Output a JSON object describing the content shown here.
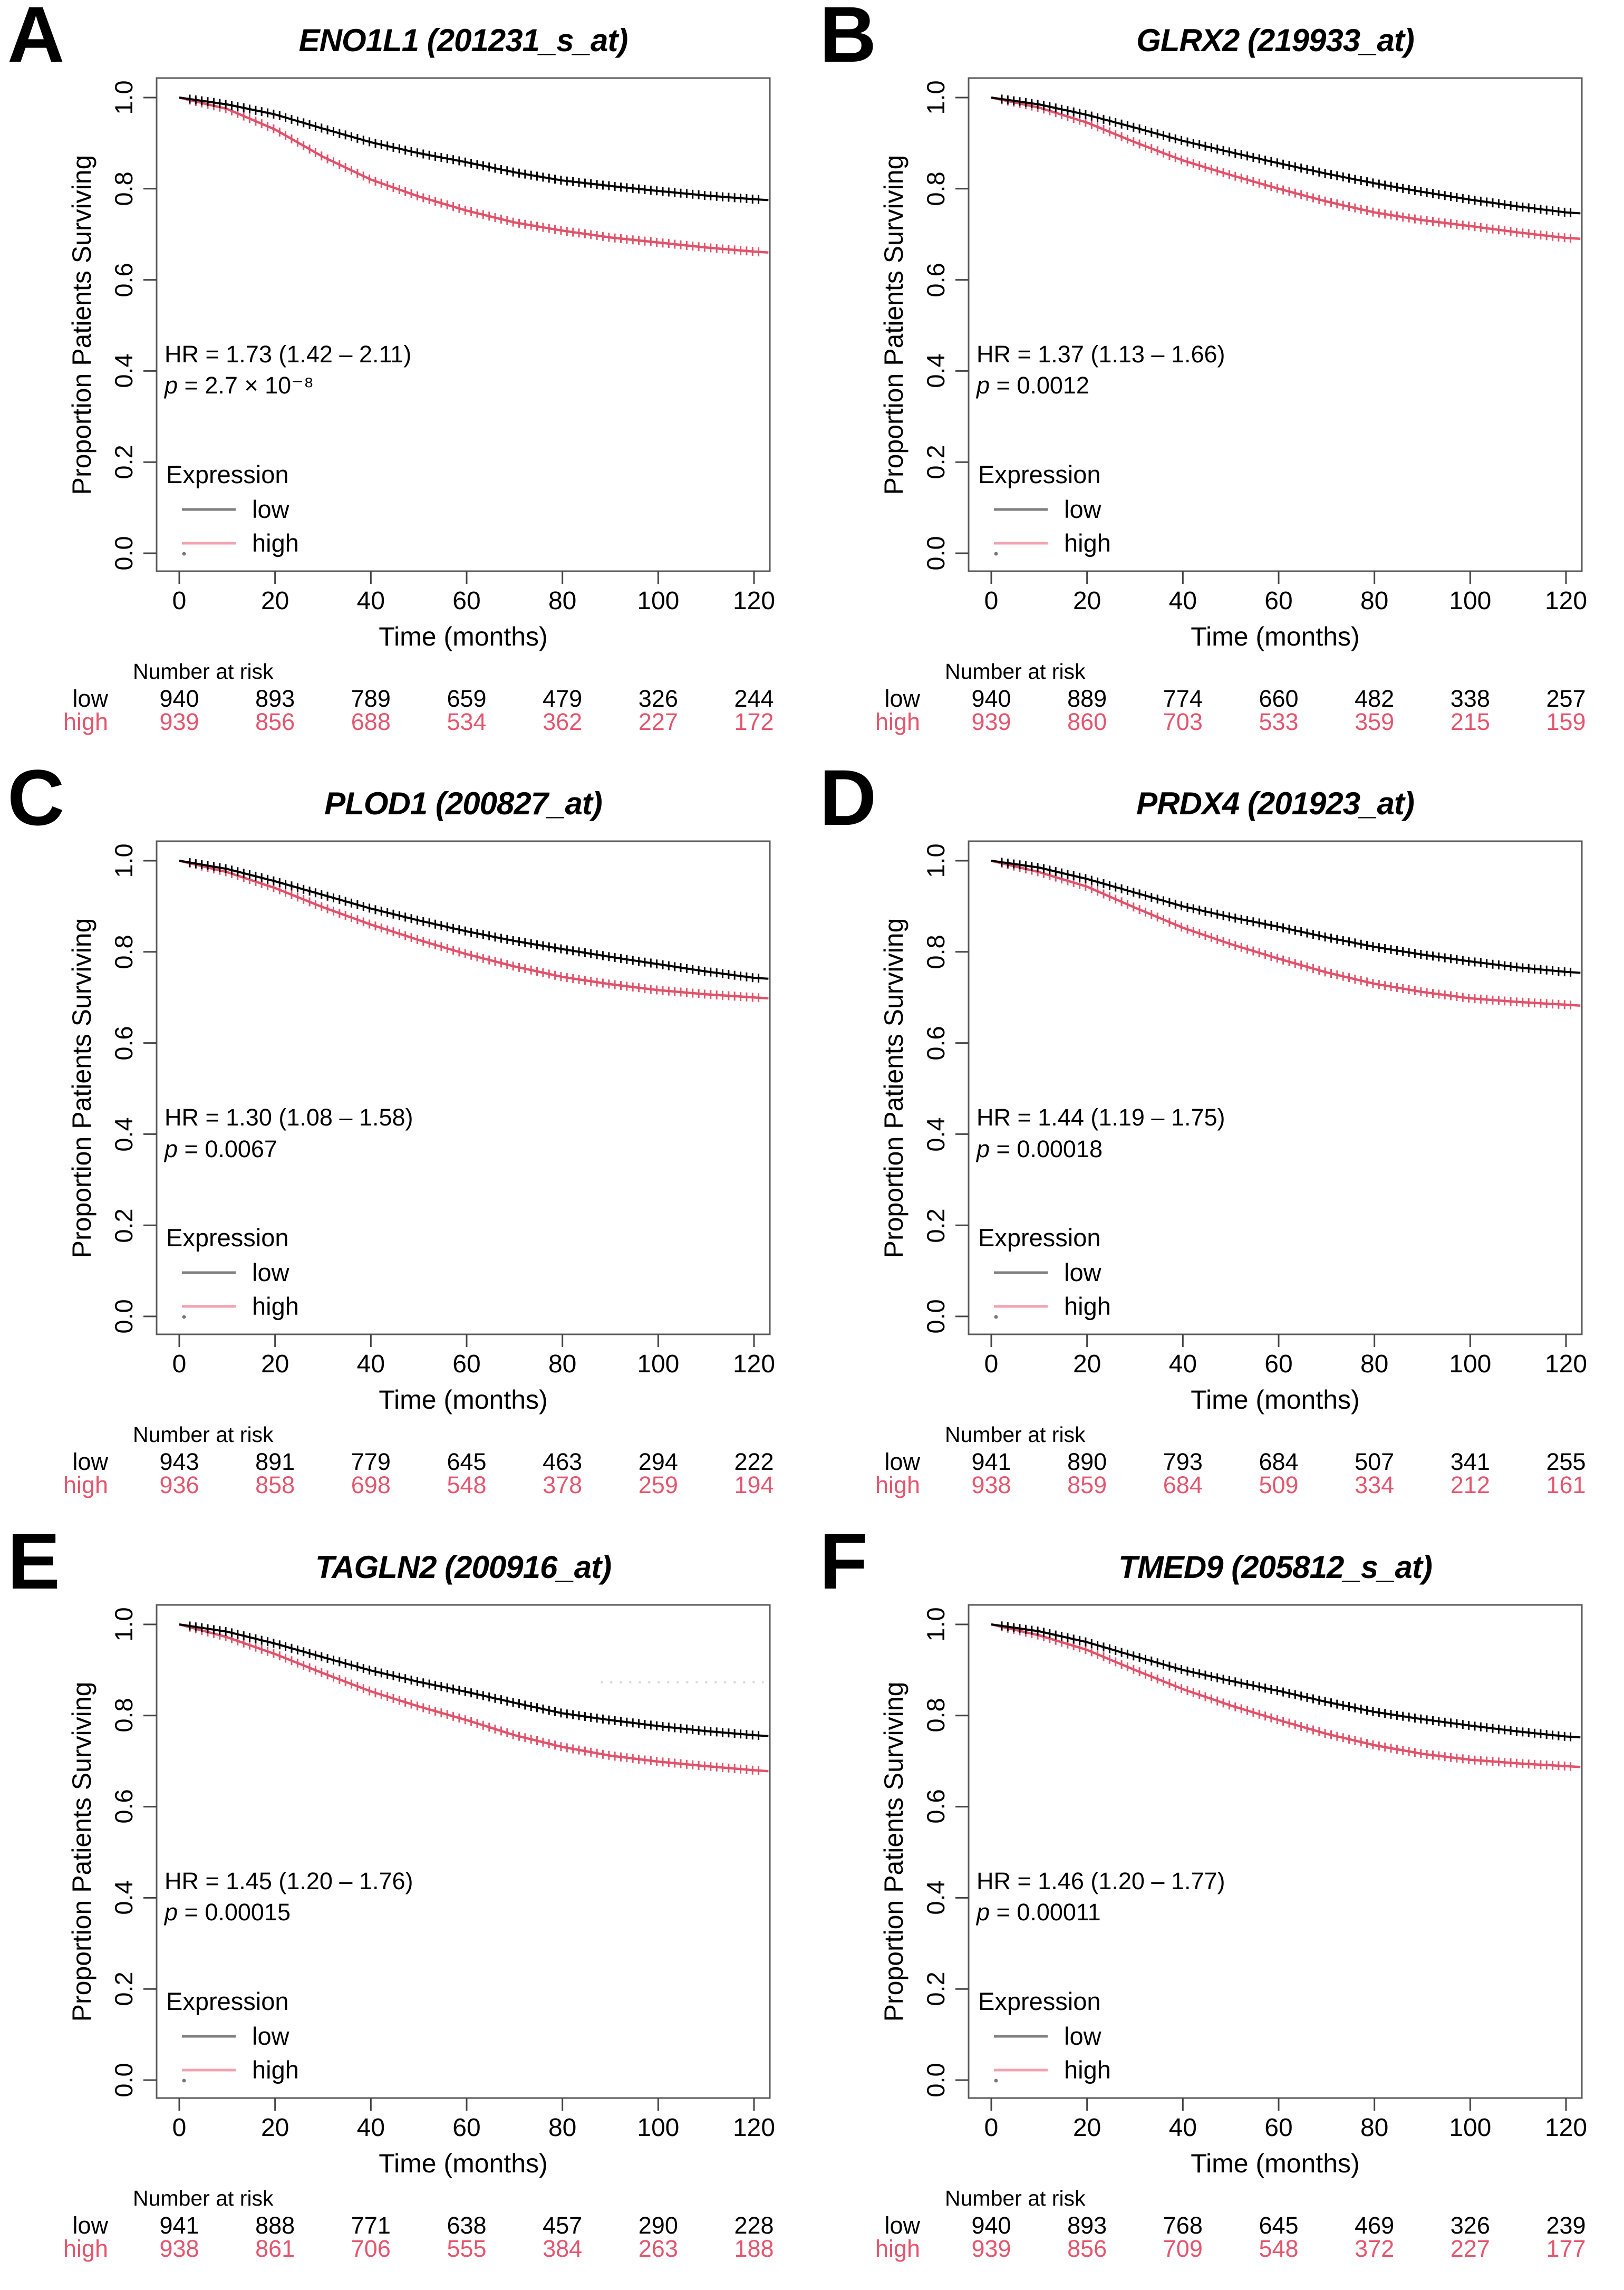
{
  "figure": {
    "axis": {
      "x_label": "Time (months)",
      "y_label": "Proportion Patients Surviving",
      "x_ticks": [
        "0",
        "20",
        "40",
        "60",
        "80",
        "100",
        "120"
      ],
      "y_ticks": [
        "1.0",
        "0.8",
        "0.6",
        "0.4",
        "0.2",
        "0.0"
      ]
    },
    "legend": {
      "title": "Expression",
      "items": [
        "low",
        "high"
      ]
    },
    "risk_title": "Number at risk",
    "risk_row_labels": [
      "low",
      "high"
    ],
    "colors": {
      "low_curve": "#000000",
      "high_curve": "#DF536B",
      "high_text": "#E4566E",
      "legend_low_line": "#808080",
      "legend_high_line": "#F2A2B0",
      "axis_box": "#5a5a5a",
      "tick": "#444444",
      "artifact_line": "#d8d8d8"
    }
  },
  "chart_data": [
    {
      "type": "line",
      "subtype": "kaplan-meier",
      "label": "A",
      "title": "ENO1L1 (201231_s_at)",
      "hr_text": "HR = 1.73 (1.42 – 2.11)",
      "p": {
        "label": "p",
        "rest": " = 2.7 × 10⁻⁸"
      },
      "xlabel": "Time (months)",
      "ylabel": "Proportion Patients Surviving",
      "xlim": [
        0,
        120
      ],
      "ylim": [
        0.0,
        1.0
      ],
      "series": [
        {
          "name": "low",
          "color": "#000000",
          "t": [
            0,
            10,
            20,
            30,
            40,
            50,
            60,
            70,
            80,
            90,
            100,
            110,
            120,
            123
          ],
          "s": [
            1.0,
            0.985,
            0.963,
            0.932,
            0.902,
            0.878,
            0.858,
            0.836,
            0.818,
            0.806,
            0.795,
            0.785,
            0.777,
            0.775
          ]
        },
        {
          "name": "high",
          "color": "#DF536B",
          "t": [
            0,
            10,
            20,
            30,
            40,
            50,
            60,
            70,
            80,
            90,
            100,
            110,
            120,
            123
          ],
          "s": [
            1.0,
            0.975,
            0.93,
            0.87,
            0.82,
            0.783,
            0.752,
            0.726,
            0.708,
            0.693,
            0.682,
            0.671,
            0.662,
            0.66
          ]
        }
      ],
      "risk": {
        "low": [
          940,
          893,
          789,
          659,
          479,
          326,
          244
        ],
        "high": [
          939,
          856,
          688,
          534,
          362,
          227,
          172
        ]
      }
    },
    {
      "type": "line",
      "subtype": "kaplan-meier",
      "label": "B",
      "title": "GLRX2 (219933_at)",
      "hr_text": "HR = 1.37 (1.13 – 1.66)",
      "p": {
        "label": "p",
        "rest": " = 0.0012"
      },
      "xlabel": "Time (months)",
      "ylabel": "Proportion Patients Surviving",
      "xlim": [
        0,
        120
      ],
      "ylim": [
        0.0,
        1.0
      ],
      "series": [
        {
          "name": "low",
          "color": "#000000",
          "t": [
            0,
            10,
            20,
            30,
            40,
            50,
            60,
            70,
            80,
            90,
            100,
            110,
            120,
            123
          ],
          "s": [
            1.0,
            0.985,
            0.962,
            0.934,
            0.905,
            0.88,
            0.856,
            0.833,
            0.812,
            0.793,
            0.776,
            0.761,
            0.748,
            0.746
          ]
        },
        {
          "name": "high",
          "color": "#DF536B",
          "t": [
            0,
            10,
            20,
            30,
            40,
            50,
            60,
            70,
            80,
            90,
            100,
            110,
            120,
            123
          ],
          "s": [
            1.0,
            0.978,
            0.945,
            0.902,
            0.862,
            0.83,
            0.8,
            0.772,
            0.748,
            0.731,
            0.718,
            0.704,
            0.692,
            0.69
          ]
        }
      ],
      "risk": {
        "low": [
          940,
          889,
          774,
          660,
          482,
          338,
          257
        ],
        "high": [
          939,
          860,
          703,
          533,
          359,
          215,
          159
        ]
      }
    },
    {
      "type": "line",
      "subtype": "kaplan-meier",
      "label": "C",
      "title": "PLOD1 (200827_at)",
      "hr_text": "HR = 1.30 (1.08 – 1.58)",
      "p": {
        "label": "p",
        "rest": " = 0.0067"
      },
      "xlabel": "Time (months)",
      "ylabel": "Proportion Patients Surviving",
      "xlim": [
        0,
        120
      ],
      "ylim": [
        0.0,
        1.0
      ],
      "series": [
        {
          "name": "low",
          "color": "#000000",
          "t": [
            0,
            10,
            20,
            30,
            40,
            50,
            60,
            70,
            80,
            90,
            100,
            110,
            120,
            123
          ],
          "s": [
            1.0,
            0.982,
            0.955,
            0.925,
            0.895,
            0.869,
            0.845,
            0.824,
            0.806,
            0.789,
            0.773,
            0.757,
            0.743,
            0.741
          ]
        },
        {
          "name": "high",
          "color": "#DF536B",
          "t": [
            0,
            10,
            20,
            30,
            40,
            50,
            60,
            70,
            80,
            90,
            100,
            110,
            120,
            123
          ],
          "s": [
            1.0,
            0.975,
            0.94,
            0.898,
            0.86,
            0.826,
            0.795,
            0.768,
            0.745,
            0.729,
            0.716,
            0.707,
            0.7,
            0.698
          ]
        }
      ],
      "risk": {
        "low": [
          943,
          891,
          779,
          645,
          463,
          294,
          222
        ],
        "high": [
          936,
          858,
          698,
          548,
          378,
          259,
          194
        ]
      }
    },
    {
      "type": "line",
      "subtype": "kaplan-meier",
      "label": "D",
      "title": "PRDX4 (201923_at)",
      "hr_text": "HR = 1.44 (1.19 – 1.75)",
      "p": {
        "label": "p",
        "rest": " = 0.00018"
      },
      "xlabel": "Time (months)",
      "ylabel": "Proportion Patients Surviving",
      "xlim": [
        0,
        120
      ],
      "ylim": [
        0.0,
        1.0
      ],
      "series": [
        {
          "name": "low",
          "color": "#000000",
          "t": [
            0,
            10,
            20,
            30,
            40,
            50,
            60,
            70,
            80,
            90,
            100,
            110,
            120,
            123
          ],
          "s": [
            1.0,
            0.985,
            0.96,
            0.93,
            0.9,
            0.876,
            0.855,
            0.832,
            0.811,
            0.794,
            0.779,
            0.766,
            0.756,
            0.754
          ]
        },
        {
          "name": "high",
          "color": "#DF536B",
          "t": [
            0,
            10,
            20,
            30,
            40,
            50,
            60,
            70,
            80,
            90,
            100,
            110,
            120,
            123
          ],
          "s": [
            1.0,
            0.975,
            0.943,
            0.897,
            0.853,
            0.817,
            0.785,
            0.755,
            0.73,
            0.712,
            0.698,
            0.69,
            0.684,
            0.682
          ]
        }
      ],
      "risk": {
        "low": [
          941,
          890,
          793,
          684,
          507,
          341,
          255
        ],
        "high": [
          938,
          859,
          684,
          509,
          334,
          212,
          161
        ]
      }
    },
    {
      "type": "line",
      "subtype": "kaplan-meier",
      "label": "E",
      "title": "TAGLN2 (200916_at)",
      "hr_text": "HR = 1.45 (1.20 – 1.76)",
      "p": {
        "label": "p",
        "rest": " = 0.00015"
      },
      "xlabel": "Time (months)",
      "ylabel": "Proportion Patients Surviving",
      "xlim": [
        0,
        120
      ],
      "ylim": [
        0.0,
        1.0
      ],
      "faint_line": {
        "t_start": 88,
        "t_end": 122,
        "s": 0.873
      },
      "series": [
        {
          "name": "low",
          "color": "#000000",
          "t": [
            0,
            10,
            20,
            30,
            40,
            50,
            60,
            70,
            80,
            90,
            100,
            110,
            120,
            123
          ],
          "s": [
            1.0,
            0.984,
            0.958,
            0.928,
            0.899,
            0.874,
            0.852,
            0.828,
            0.805,
            0.79,
            0.777,
            0.766,
            0.757,
            0.755
          ]
        },
        {
          "name": "high",
          "color": "#DF536B",
          "t": [
            0,
            10,
            20,
            30,
            40,
            50,
            60,
            70,
            80,
            90,
            100,
            110,
            120,
            123
          ],
          "s": [
            1.0,
            0.972,
            0.935,
            0.893,
            0.853,
            0.82,
            0.79,
            0.757,
            0.731,
            0.712,
            0.699,
            0.689,
            0.68,
            0.678
          ]
        }
      ],
      "risk": {
        "low": [
          941,
          888,
          771,
          638,
          457,
          290,
          228
        ],
        "high": [
          938,
          861,
          706,
          555,
          384,
          263,
          188
        ]
      }
    },
    {
      "type": "line",
      "subtype": "kaplan-meier",
      "label": "F",
      "title": "TMED9 (205812_s_at)",
      "hr_text": "HR = 1.46 (1.20 – 1.77)",
      "p": {
        "label": "p",
        "rest": " = 0.00011"
      },
      "xlabel": "Time (months)",
      "ylabel": "Proportion Patients Surviving",
      "xlim": [
        0,
        120
      ],
      "ylim": [
        0.0,
        1.0
      ],
      "series": [
        {
          "name": "low",
          "color": "#000000",
          "t": [
            0,
            10,
            20,
            30,
            40,
            50,
            60,
            70,
            80,
            90,
            100,
            110,
            120,
            123
          ],
          "s": [
            1.0,
            0.985,
            0.961,
            0.93,
            0.9,
            0.876,
            0.854,
            0.83,
            0.808,
            0.792,
            0.778,
            0.765,
            0.754,
            0.752
          ]
        },
        {
          "name": "high",
          "color": "#DF536B",
          "t": [
            0,
            10,
            20,
            30,
            40,
            50,
            60,
            70,
            80,
            90,
            100,
            110,
            120,
            123
          ],
          "s": [
            1.0,
            0.976,
            0.944,
            0.9,
            0.858,
            0.822,
            0.79,
            0.76,
            0.735,
            0.716,
            0.703,
            0.695,
            0.689,
            0.687
          ]
        }
      ],
      "risk": {
        "low": [
          940,
          893,
          768,
          645,
          469,
          326,
          239
        ],
        "high": [
          939,
          856,
          709,
          548,
          372,
          227,
          177
        ]
      }
    }
  ]
}
